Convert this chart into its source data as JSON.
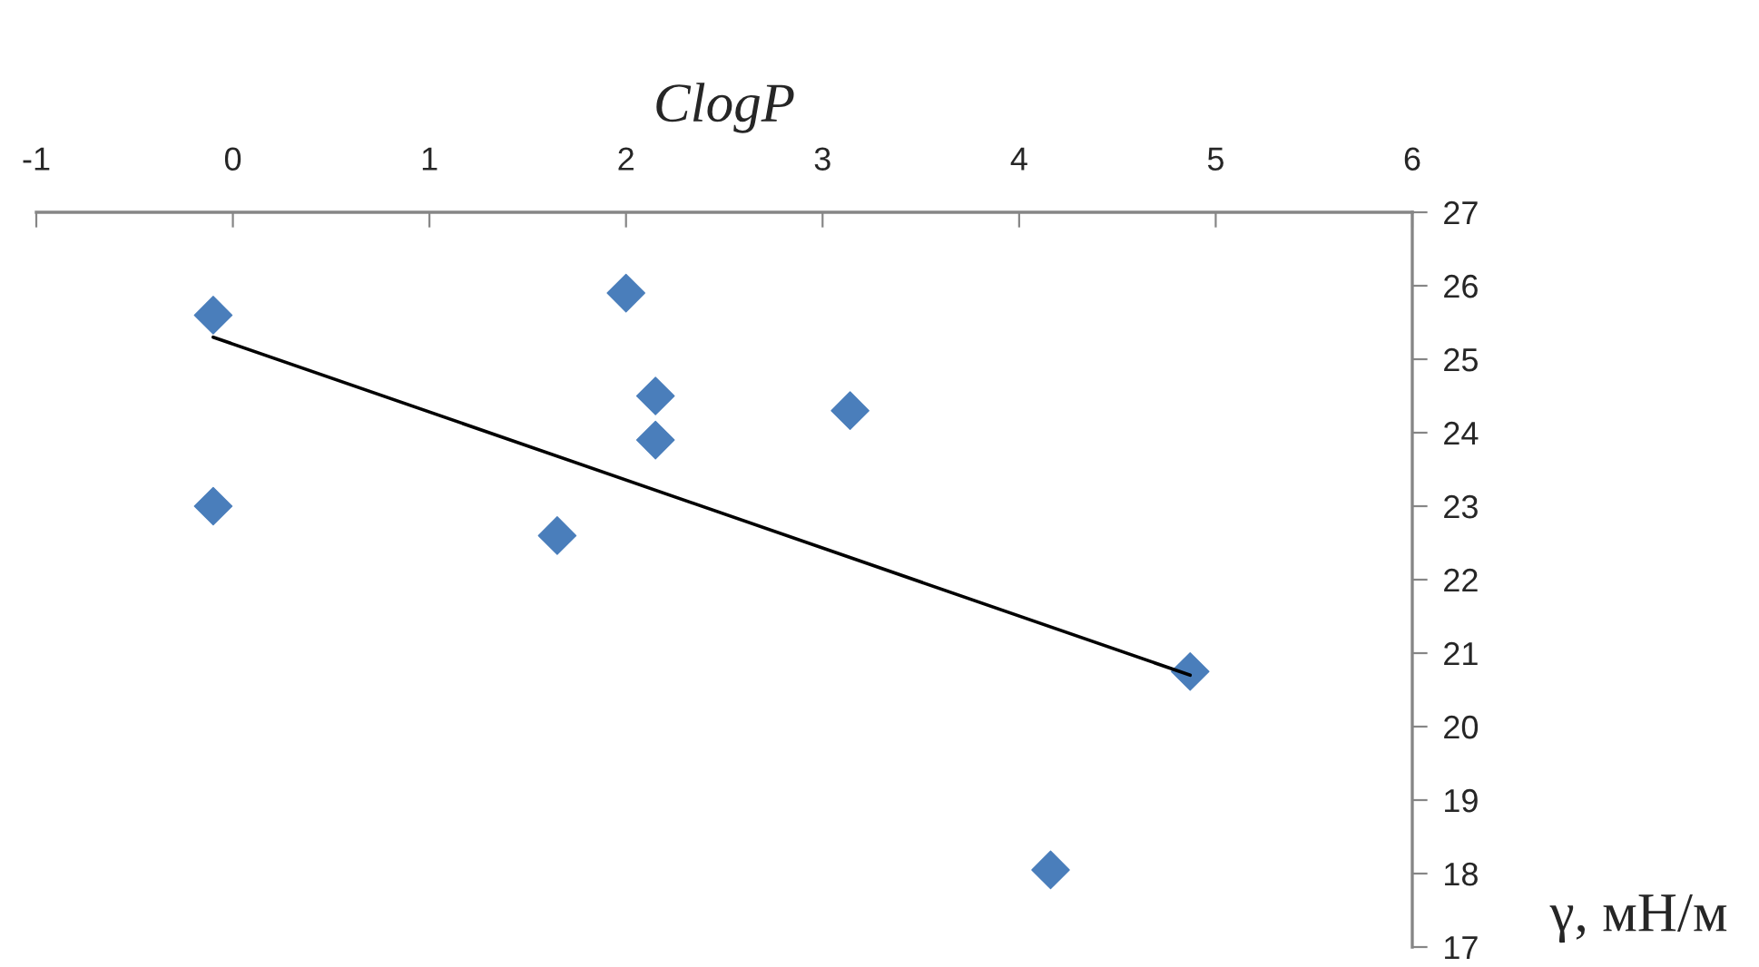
{
  "chart_data": {
    "type": "scatter",
    "xlabel": "ClogP",
    "ylabel": "γ, мН/м",
    "xlim": [
      -1,
      6
    ],
    "xticks": [
      -1,
      0,
      1,
      2,
      3,
      4,
      5,
      6
    ],
    "ylim": [
      17,
      27
    ],
    "yticks": [
      17,
      18,
      19,
      20,
      21,
      22,
      23,
      24,
      25,
      26,
      27
    ],
    "grid": false,
    "series": [
      {
        "color": "#4a7ebb",
        "marker": "diamond",
        "x": [
          -0.1,
          -0.1,
          1.65,
          2.0,
          2.15,
          2.15,
          3.14,
          4.87,
          4.16
        ],
        "values": [
          25.6,
          23.0,
          22.6,
          25.9,
          24.5,
          23.9,
          24.3,
          20.75,
          18.05
        ]
      },
      {
        "type": "line",
        "color": "#000000",
        "x": [
          -0.1,
          4.87
        ],
        "values": [
          25.3,
          20.7
        ]
      }
    ]
  }
}
